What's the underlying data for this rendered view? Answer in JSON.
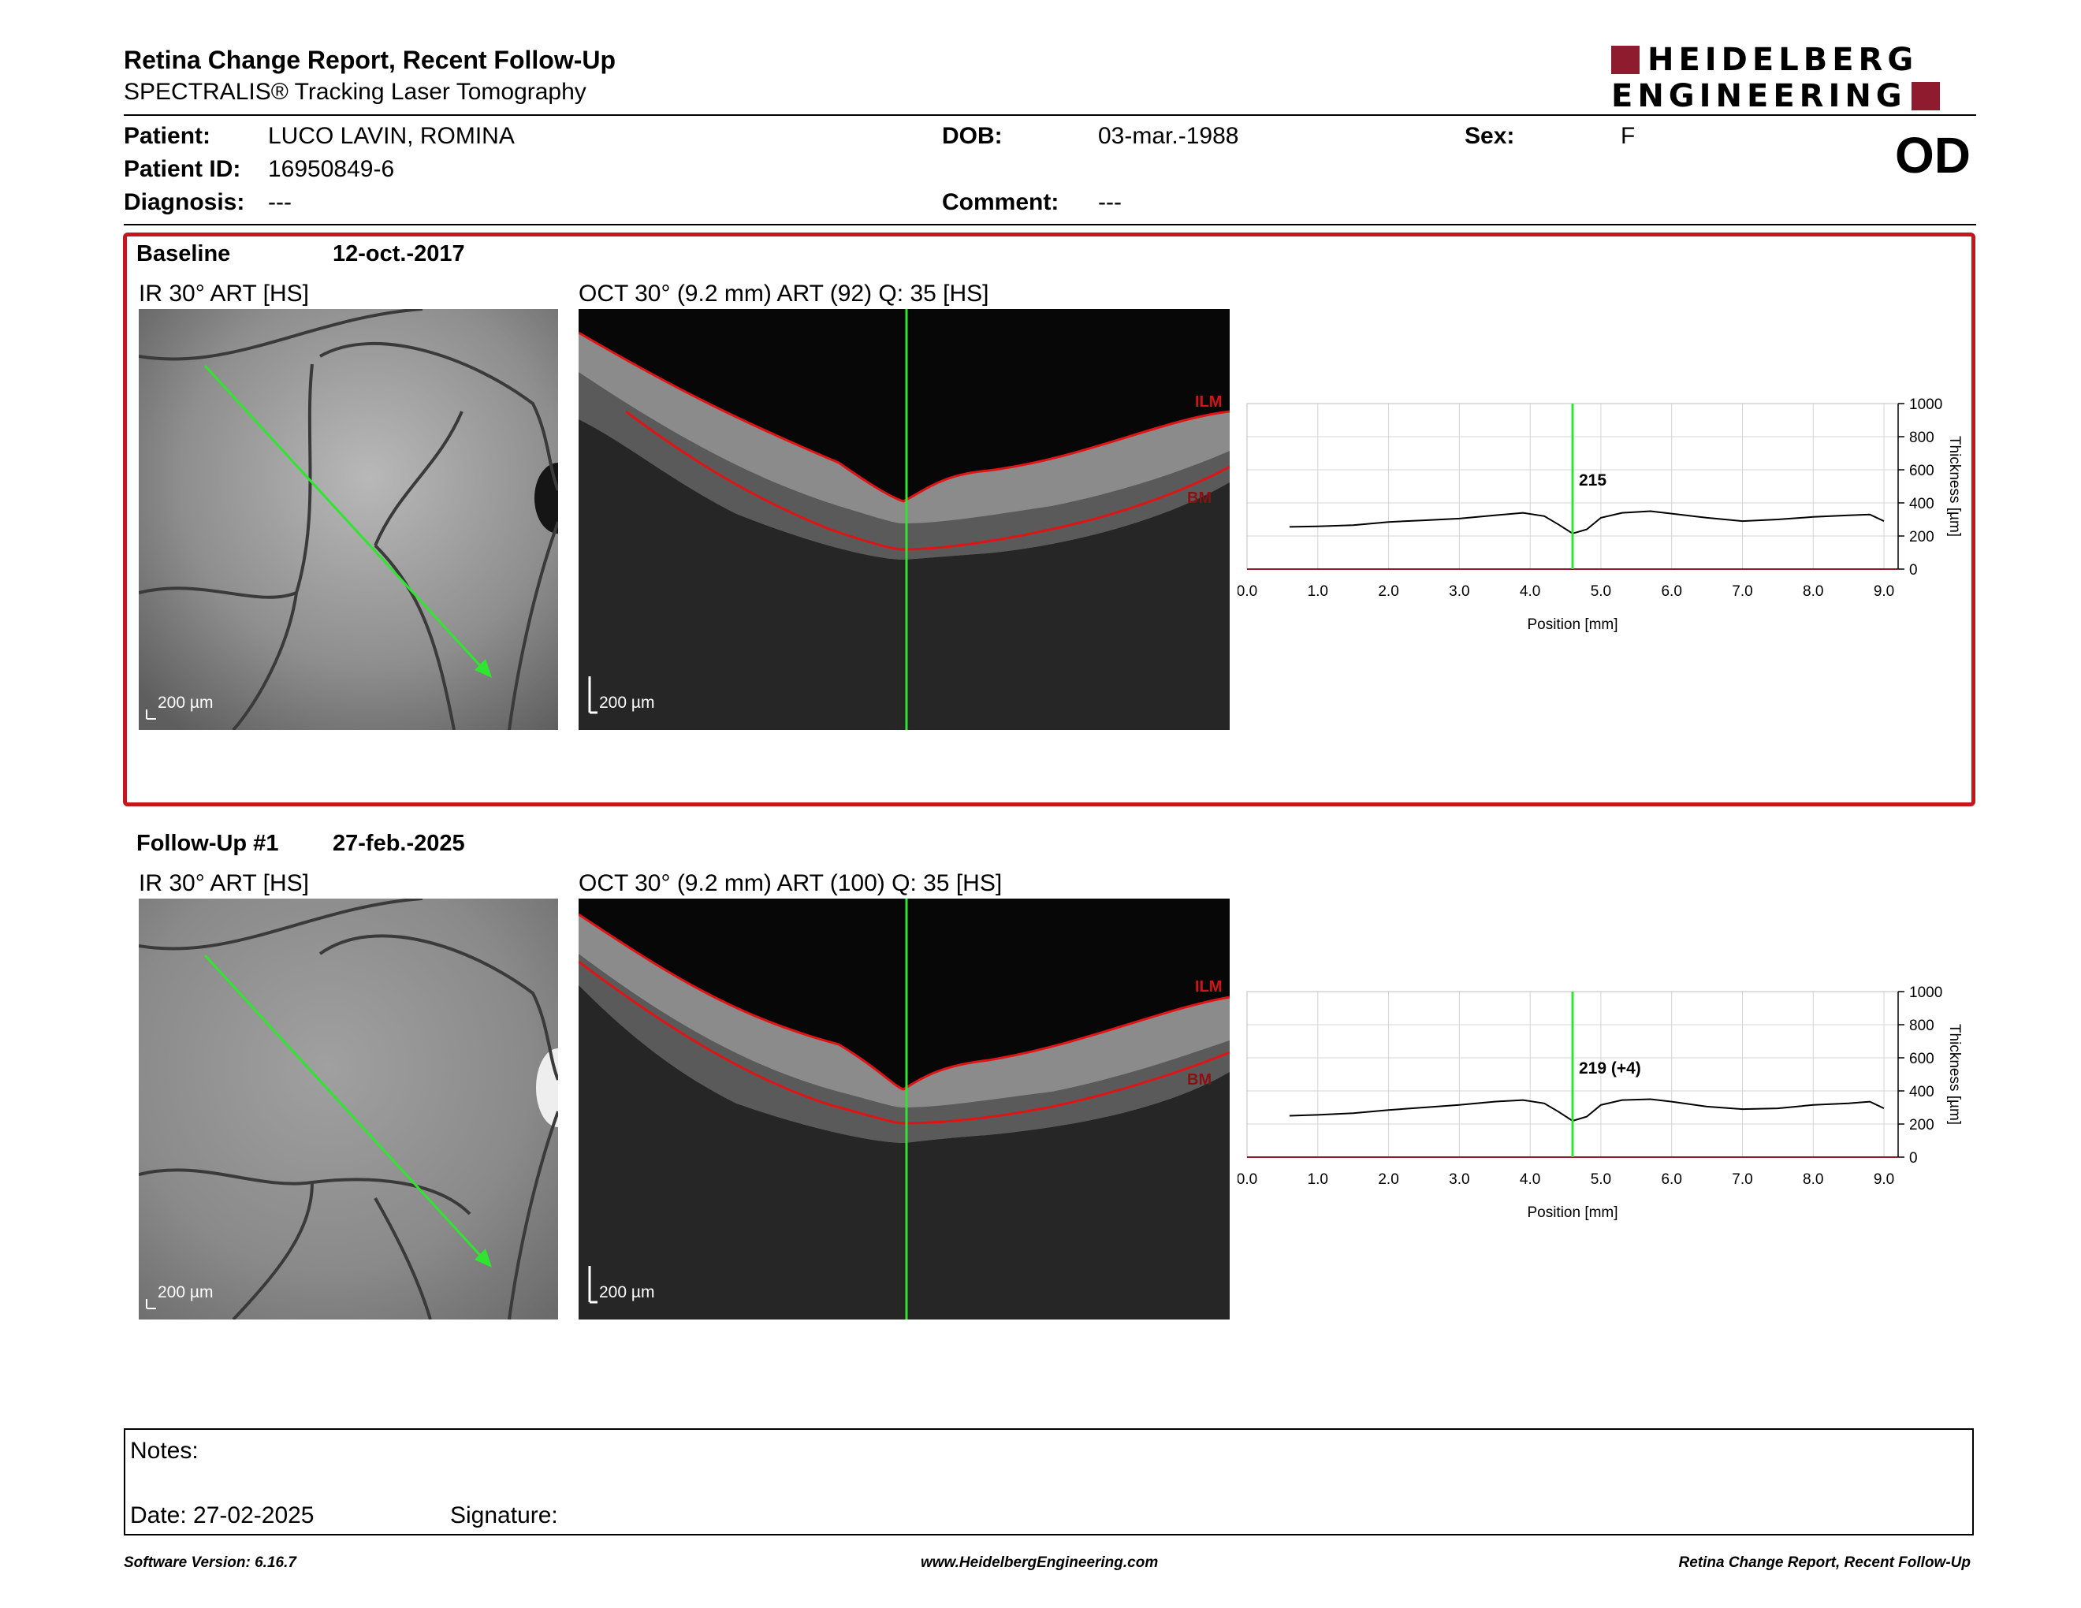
{
  "report": {
    "title": "Retina Change Report, Recent Follow-Up",
    "subtitle": "SPECTRALIS® Tracking Laser Tomography",
    "brand_line1": "HEIDELBERG",
    "brand_line2": "ENGINEERING",
    "eye": "OD"
  },
  "patient": {
    "name_label": "Patient:",
    "name": "LUCO LAVIN, ROMINA",
    "id_label": "Patient ID:",
    "id": "16950849-6",
    "diagnosis_label": "Diagnosis:",
    "diagnosis": "---",
    "dob_label": "DOB:",
    "dob": "03-mar.-1988",
    "comment_label": "Comment:",
    "comment": "---",
    "sex_label": "Sex:",
    "sex": "F"
  },
  "baseline": {
    "label": "Baseline",
    "date": "12-oct.-2017",
    "ir_label": "IR 30° ART [HS]",
    "oct_label": "OCT 30° (9.2 mm) ART (92) Q: 35 [HS]",
    "scale": "200 µm",
    "ilm": "ILM",
    "bm": "BM"
  },
  "followup": {
    "label": "Follow-Up #1",
    "date": "27-feb.-2025",
    "ir_label": "IR 30° ART [HS]",
    "oct_label": "OCT 30° (9.2 mm) ART (100) Q: 35 [HS]",
    "scale": "200 µm",
    "ilm": "ILM",
    "bm": "BM"
  },
  "chart_data": [
    {
      "type": "line",
      "xlabel": "Position [mm]",
      "ylabel": "Thickness [µm]",
      "xlim": [
        0,
        9.2
      ],
      "ylim": [
        0,
        1000
      ],
      "xticks": [
        "0.0",
        "1.0",
        "2.0",
        "3.0",
        "4.0",
        "5.0",
        "6.0",
        "7.0",
        "8.0",
        "9.0"
      ],
      "yticks": [
        "0",
        "200",
        "400",
        "600",
        "800",
        "1000"
      ],
      "marker_x": 4.6,
      "marker_label": "215",
      "grid": true,
      "x": [
        0.6,
        1.0,
        1.5,
        2.0,
        2.5,
        3.0,
        3.5,
        3.9,
        4.2,
        4.4,
        4.6,
        4.8,
        5.0,
        5.3,
        5.7,
        6.0,
        6.5,
        7.0,
        7.5,
        8.0,
        8.5,
        8.8,
        9.0
      ],
      "y": [
        255,
        258,
        265,
        285,
        295,
        305,
        325,
        340,
        320,
        270,
        215,
        240,
        310,
        340,
        350,
        335,
        310,
        290,
        300,
        315,
        325,
        330,
        290
      ]
    },
    {
      "type": "line",
      "xlabel": "Position [mm]",
      "ylabel": "Thickness [µm]",
      "xlim": [
        0,
        9.2
      ],
      "ylim": [
        0,
        1000
      ],
      "xticks": [
        "0.0",
        "1.0",
        "2.0",
        "3.0",
        "4.0",
        "5.0",
        "6.0",
        "7.0",
        "8.0",
        "9.0"
      ],
      "yticks": [
        "0",
        "200",
        "400",
        "600",
        "800",
        "1000"
      ],
      "marker_x": 4.6,
      "marker_label": "219 (+4)",
      "grid": true,
      "x": [
        0.6,
        1.0,
        1.5,
        2.0,
        2.5,
        3.0,
        3.5,
        3.9,
        4.2,
        4.4,
        4.6,
        4.8,
        5.0,
        5.3,
        5.7,
        6.0,
        6.5,
        7.0,
        7.5,
        8.0,
        8.5,
        8.8,
        9.0
      ],
      "y": [
        250,
        255,
        265,
        285,
        300,
        315,
        335,
        345,
        325,
        275,
        219,
        245,
        315,
        345,
        350,
        335,
        305,
        290,
        295,
        315,
        325,
        335,
        295
      ]
    }
  ],
  "notes": {
    "notes_label": "Notes:",
    "date_label": "Date: 27-02-2025",
    "signature_label": "Signature:"
  },
  "footer": {
    "version": "Software Version: 6.16.7",
    "url": "www.HeidelbergEngineering.com",
    "report": "Retina Change Report, Recent Follow-Up"
  }
}
